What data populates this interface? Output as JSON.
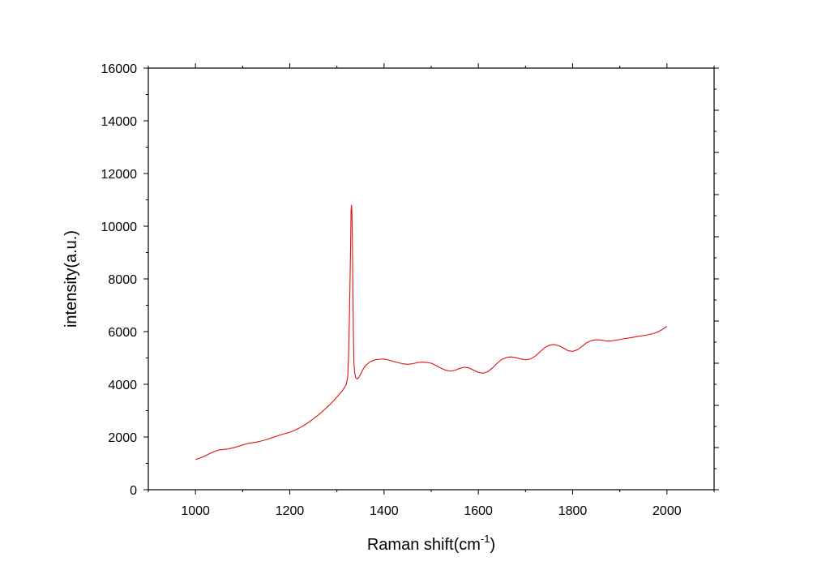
{
  "chart_data": {
    "type": "line",
    "title": "",
    "xlabel": "Raman shift(cm",
    "xlabel_sup": "-1",
    "xlabel_suffix": ")",
    "ylabel": "intensity(a.u.)",
    "xlim": [
      900,
      2100
    ],
    "ylim": [
      0,
      16000
    ],
    "x_ticks": [
      1000,
      1200,
      1400,
      1600,
      1800,
      2000
    ],
    "x_tick_labels": [
      "1000",
      "1200",
      "1400",
      "1600",
      "1800",
      "2000"
    ],
    "y_ticks": [
      0,
      2000,
      4000,
      6000,
      8000,
      10000,
      12000,
      14000,
      16000
    ],
    "y_tick_labels": [
      "0",
      "2000",
      "4000",
      "6000",
      "8000",
      "10000",
      "12000",
      "14000",
      "16000"
    ],
    "grid": false,
    "line_color": "#e01010",
    "series": [
      {
        "x": [
          1000,
          1010,
          1020,
          1030,
          1040,
          1050,
          1060,
          1070,
          1080,
          1090,
          1100,
          1110,
          1120,
          1130,
          1140,
          1150,
          1160,
          1170,
          1180,
          1190,
          1200,
          1210,
          1220,
          1230,
          1240,
          1250,
          1260,
          1270,
          1280,
          1290,
          1300,
          1310,
          1315,
          1320,
          1323,
          1325,
          1327,
          1329,
          1330,
          1331,
          1332,
          1333,
          1334,
          1335,
          1336,
          1338,
          1340,
          1343,
          1346,
          1350,
          1355,
          1360,
          1370,
          1380,
          1390,
          1400,
          1410,
          1420,
          1430,
          1440,
          1450,
          1460,
          1470,
          1480,
          1490,
          1500,
          1510,
          1520,
          1530,
          1540,
          1550,
          1560,
          1570,
          1580,
          1590,
          1600,
          1610,
          1620,
          1630,
          1640,
          1650,
          1660,
          1670,
          1680,
          1690,
          1700,
          1710,
          1720,
          1730,
          1740,
          1750,
          1760,
          1770,
          1780,
          1790,
          1800,
          1810,
          1820,
          1830,
          1840,
          1850,
          1860,
          1870,
          1880,
          1890,
          1900,
          1910,
          1920,
          1930,
          1940,
          1950,
          1960,
          1970,
          1980,
          1990,
          2000
        ],
        "y": [
          1150,
          1200,
          1280,
          1370,
          1450,
          1510,
          1530,
          1550,
          1590,
          1640,
          1700,
          1750,
          1780,
          1810,
          1850,
          1900,
          1960,
          2020,
          2080,
          2130,
          2180,
          2250,
          2340,
          2440,
          2560,
          2690,
          2830,
          2980,
          3140,
          3320,
          3520,
          3720,
          3850,
          4000,
          4300,
          5200,
          7000,
          9200,
          10600,
          10800,
          10400,
          9200,
          7400,
          5800,
          4800,
          4400,
          4250,
          4200,
          4250,
          4380,
          4550,
          4700,
          4850,
          4930,
          4950,
          4960,
          4920,
          4870,
          4820,
          4780,
          4760,
          4780,
          4820,
          4840,
          4830,
          4800,
          4720,
          4620,
          4540,
          4500,
          4530,
          4600,
          4650,
          4620,
          4540,
          4450,
          4420,
          4480,
          4620,
          4800,
          4950,
          5020,
          5040,
          5010,
          4960,
          4930,
          4960,
          5060,
          5220,
          5380,
          5480,
          5510,
          5470,
          5380,
          5280,
          5250,
          5310,
          5440,
          5580,
          5660,
          5690,
          5680,
          5650,
          5640,
          5670,
          5700,
          5730,
          5760,
          5790,
          5820,
          5850,
          5880,
          5920,
          5980,
          6080,
          6200
        ]
      }
    ]
  }
}
